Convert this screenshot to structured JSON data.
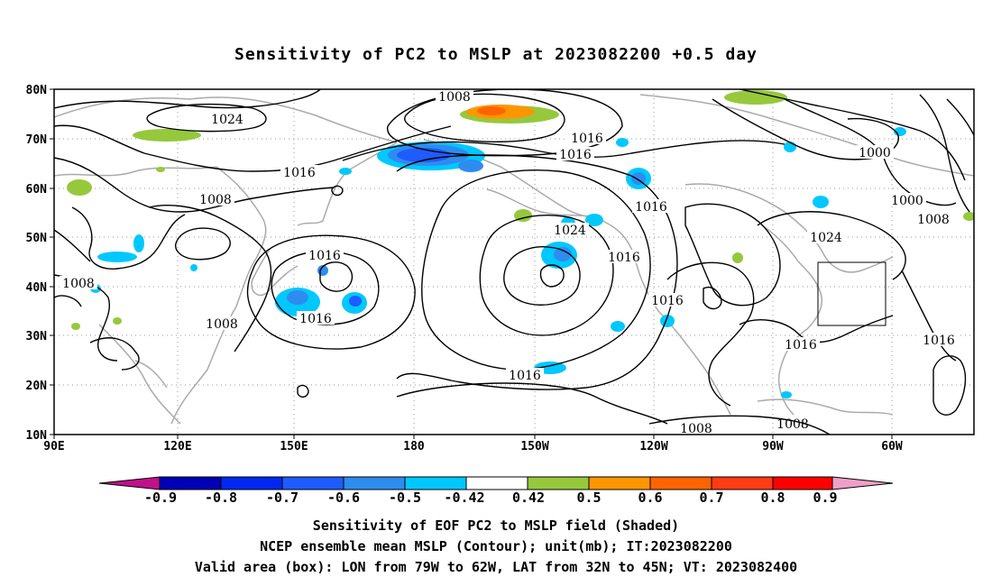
{
  "title": "Sensitivity of PC2 to MSLP at 2023082200 +0.5 day",
  "map": {
    "lat_labels": [
      "80N",
      "70N",
      "60N",
      "50N",
      "40N",
      "30N",
      "20N",
      "10N"
    ],
    "lon_labels": [
      "90E",
      "120E",
      "150E",
      "180",
      "150W",
      "120W",
      "90W",
      "60W"
    ],
    "valid_box": {
      "lon_from": "79W",
      "lon_to": "62W",
      "lat_from": "32N",
      "lat_to": "45N"
    },
    "contour_labels": [
      "1008",
      "1024",
      "1016",
      "1016",
      "1016",
      "1000",
      "1008",
      "1000",
      "1008",
      "1016",
      "1016",
      "1024",
      "1016",
      "1024",
      "1016",
      "1016",
      "1016",
      "1016",
      "1016",
      "1008",
      "1008",
      "1008"
    ]
  },
  "colorbar": {
    "ticks": [
      "-0.9",
      "-0.8",
      "-0.7",
      "-0.6",
      "-0.5",
      "-0.42",
      "0.42",
      "0.5",
      "0.6",
      "0.7",
      "0.8",
      "0.9"
    ],
    "colors": {
      "lt_-0.9": "#c0108c",
      "-0.9_-0.8": "#0000b4",
      "-0.8_-0.7": "#0028f0",
      "-0.7_-0.6": "#1e5cff",
      "-0.6_-0.5": "#2e8cf0",
      "-0.5_-0.42": "#00c8ff",
      "-0.42_0.42": "#ffffff",
      "0.42_0.5": "#96c83c",
      "0.5_0.6": "#ff9600",
      "0.6_0.7": "#ff6400",
      "0.7_0.8": "#ff3c14",
      "0.8_0.9": "#ff0000",
      "gt_0.9": "#f0a0c8"
    }
  },
  "captions": {
    "line1": "Sensitivity of EOF PC2 to MSLP field (Shaded)",
    "line2": "NCEP ensemble mean MSLP (Contour); unit(mb); IT:2023082200",
    "line3": "Valid area (box): LON from 79W to 62W, LAT from 32N to 45N; VT: 2023082400"
  }
}
